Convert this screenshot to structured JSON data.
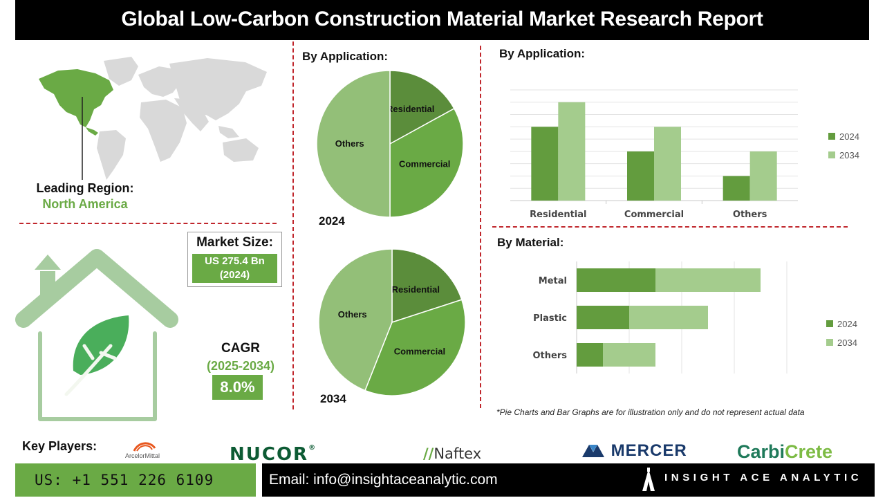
{
  "header": {
    "title": "Global Low-Carbon Construction Material Market Research Report"
  },
  "leading_region": {
    "label": "Leading Region:",
    "value": "North America"
  },
  "market_size": {
    "label": "Market Size:",
    "value_line1": "US 275.4 Bn",
    "value_line2": "(2024)"
  },
  "cagr": {
    "label": "CAGR",
    "period": "(2025-2034)",
    "value": "8.0%"
  },
  "pie_section": {
    "title": "By Application:",
    "year_top": "2024",
    "year_bottom": "2034"
  },
  "bar_app_section": {
    "title": "By Application:"
  },
  "bar_mat_section": {
    "title": "By Material:"
  },
  "note": "*Pie Charts and Bar Graphs are for illustration only and do not represent actual data",
  "key_players": {
    "label": "Key Players:",
    "arcelor": "ArcelorMittal",
    "nucor": "NUCOR",
    "nucor_mark": "®",
    "naftex": "Naftex",
    "mercer": "MERCER",
    "carbi": "Carbi",
    "crete": "Crete"
  },
  "footer": {
    "phone": "US: +1 551 226 6109",
    "email": "Email: info@insightaceanalytic.com",
    "brand": "INSIGHT ACE ANALYTIC"
  },
  "colors": {
    "green_dark": "#5b8d3b",
    "green_mid": "#6aaa45",
    "green_light": "#93bf78",
    "bar_2024": "#639c3e",
    "bar_2034": "#a4cc8d",
    "divider_red": "#c0262c",
    "map_gray": "#d9d9d9",
    "house_green": "#a7cca0"
  },
  "chart_data": [
    {
      "type": "pie",
      "year": "2024",
      "labels": [
        "Residential",
        "Commercial",
        "Others"
      ],
      "values": [
        17,
        33,
        50
      ]
    },
    {
      "type": "pie",
      "year": "2034",
      "labels": [
        "Residential",
        "Commercial",
        "Others"
      ],
      "values": [
        20,
        36,
        44
      ]
    },
    {
      "type": "bar",
      "title": "By Application:",
      "categories": [
        "Residential",
        "Commercial",
        "Others"
      ],
      "series": [
        {
          "name": "2024",
          "values": [
            6,
            4,
            2
          ]
        },
        {
          "name": "2034",
          "values": [
            8,
            6,
            4
          ]
        }
      ],
      "ylim": [
        0,
        9
      ],
      "grid": true,
      "legend": "right"
    },
    {
      "type": "bar",
      "orientation": "horizontal",
      "stacked": true,
      "title": "By Material:",
      "categories": [
        "Metal",
        "Plastic",
        "Others"
      ],
      "series": [
        {
          "name": "2024",
          "values": [
            3,
            2,
            1
          ]
        },
        {
          "name": "2034",
          "values": [
            4,
            3,
            2
          ]
        }
      ],
      "xlim": [
        0,
        8
      ],
      "grid": true,
      "legend": "right"
    }
  ]
}
